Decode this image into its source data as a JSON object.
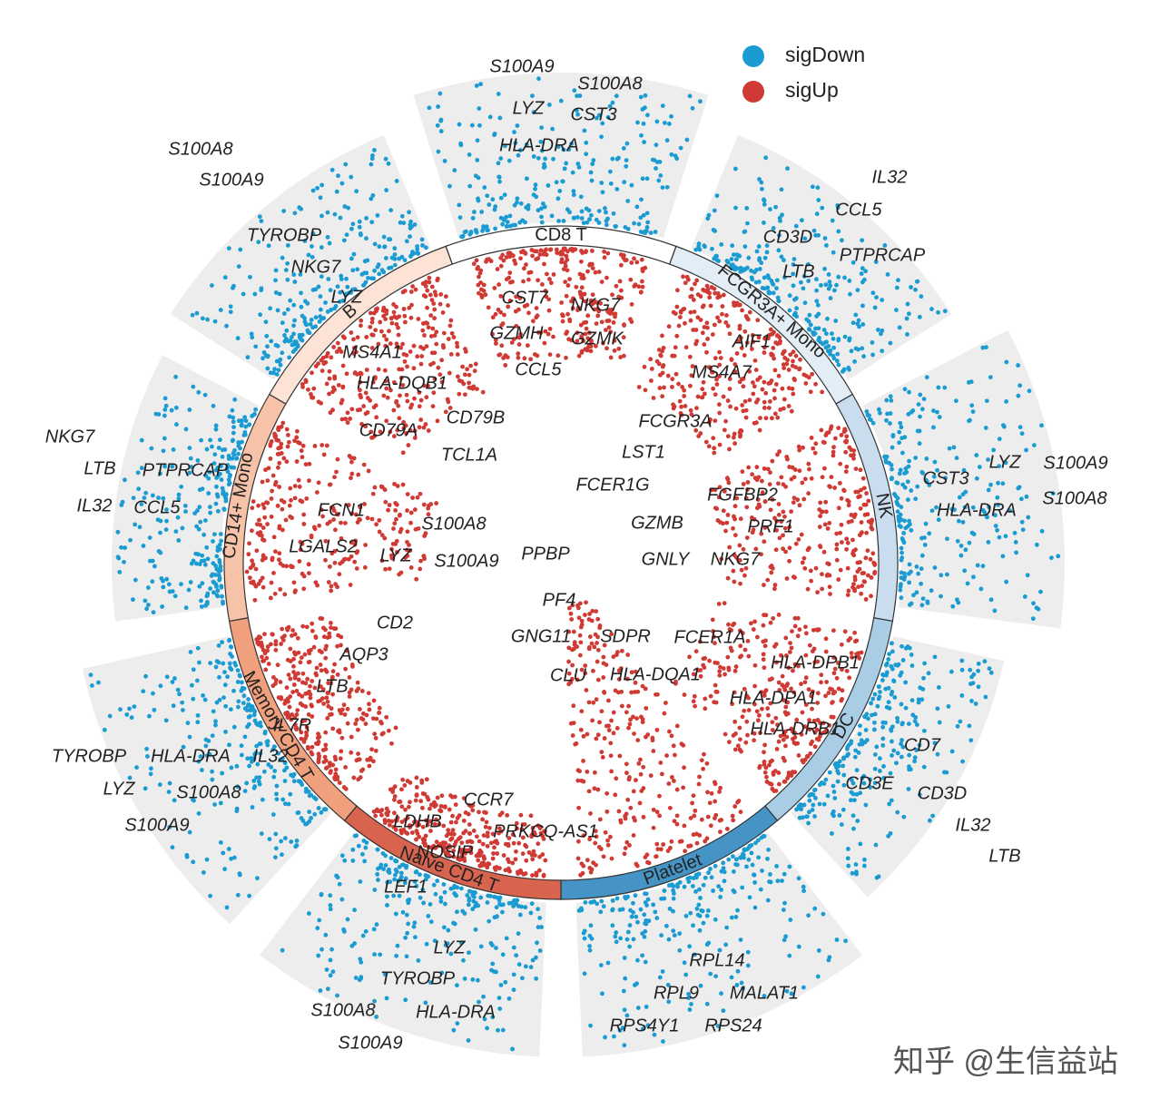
{
  "legend": [
    {
      "label": "sigDown",
      "color": "#1a9bd1"
    },
    {
      "label": "sigUp",
      "color": "#d03a34"
    }
  ],
  "clusters": [
    {
      "name": "CD8 T",
      "color": "#ffffff",
      "down_genes": [
        "S100A9",
        "S100A8",
        "LYZ",
        "CST3",
        "HLA-DRA"
      ],
      "up_genes": [
        "CST7",
        "NKG7",
        "GZMH",
        "GZMK",
        "CCL5"
      ]
    },
    {
      "name": "FCGR3A+ Mono",
      "color": "#e3edf5",
      "down_genes": [
        "IL32",
        "CCL5",
        "CD3D",
        "PTPRCAP",
        "LTB"
      ],
      "up_genes": [
        "AIF1",
        "MS4A7",
        "FCGR3A",
        "LST1",
        "FCER1G"
      ]
    },
    {
      "name": "NK",
      "color": "#c9ddee",
      "down_genes": [
        "LYZ",
        "S100A9",
        "CST3",
        "S100A8",
        "HLA-DRA"
      ],
      "up_genes": [
        "FGFBP2",
        "GZMB",
        "PRF1",
        "GNLY",
        "NKG7"
      ]
    },
    {
      "name": "DC",
      "color": "#a9cde5",
      "down_genes": [
        "CD7",
        "CD3E",
        "CD3D",
        "IL32",
        "LTB"
      ],
      "up_genes": [
        "FCER1A",
        "HLA-DPB1",
        "HLA-DQA1",
        "HLA-DPA1",
        "HLA-DRB1"
      ]
    },
    {
      "name": "Platelet",
      "color": "#4694c6",
      "down_genes": [
        "RPL14",
        "RPL9",
        "MALAT1",
        "RPS4Y1",
        "RPS24"
      ],
      "up_genes": [
        "PPBP",
        "PF4",
        "GNG11",
        "SDPR",
        "CLU"
      ]
    },
    {
      "name": "Naive CD4 T",
      "color": "#d8634f",
      "down_genes": [
        "LYZ",
        "TYROBP",
        "S100A8",
        "HLA-DRA",
        "S100A9"
      ],
      "up_genes": [
        "CCR7",
        "LDHB",
        "PRKCQ-AS1",
        "NOSIP",
        "LEF1"
      ]
    },
    {
      "name": "Memory CD4 T",
      "color": "#f0a07c",
      "down_genes": [
        "TYROBP",
        "HLA-DRA",
        "LYZ",
        "S100A8",
        "S100A9"
      ],
      "up_genes": [
        "CD2",
        "AQP3",
        "LTB",
        "IL7R",
        "IL32"
      ]
    },
    {
      "name": "CD14+ Mono",
      "color": "#f7c3a8",
      "down_genes": [
        "NKG7",
        "LTB",
        "PTPRCAP",
        "IL32",
        "CCL5"
      ],
      "up_genes": [
        "FCN1",
        "S100A8",
        "LGALS2",
        "LYZ",
        "S100A9"
      ]
    },
    {
      "name": "B",
      "color": "#fde3d6",
      "down_genes": [
        "S100A8",
        "S100A9",
        "TYROBP",
        "NKG7",
        "LYZ"
      ],
      "up_genes": [
        "MS4A1",
        "HLA-DQB1",
        "CD79B",
        "CD79A",
        "TCL1A"
      ]
    }
  ],
  "watermark": "知乎 @生信益站"
}
